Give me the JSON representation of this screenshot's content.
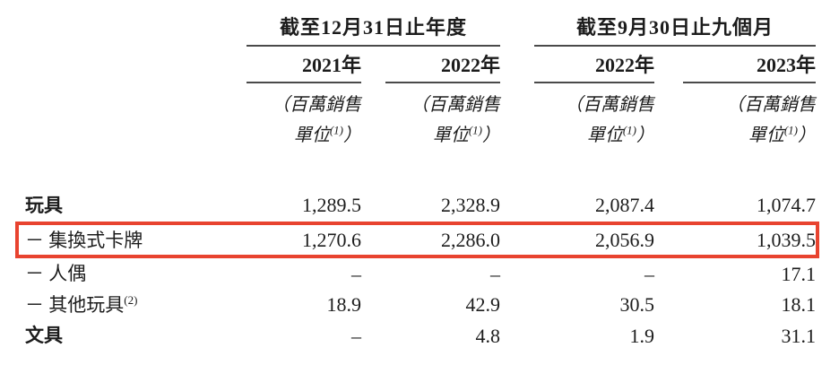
{
  "colors": {
    "highlight_box_red": "#e8432f",
    "rule_gray": "#4a4a4a",
    "text": "#1c1c1c"
  },
  "table": {
    "groups": [
      {
        "title": "截至12月31日止年度",
        "years": [
          "2021年",
          "2022年"
        ]
      },
      {
        "title": "截至9月30日止九個月",
        "years": [
          "2022年",
          "2023年"
        ]
      }
    ],
    "unit_note": {
      "line1": "（百萬銷售",
      "line2_pre": "單位",
      "sup": "(1)",
      "line2_post": "）"
    },
    "rows": [
      {
        "label": "玩具",
        "bold": true,
        "values": [
          "1,289.5",
          "2,328.9",
          "2,087.4",
          "1,074.7"
        ]
      },
      {
        "label": "－ 集換式卡牌",
        "bold": false,
        "highlighted": true,
        "values": [
          "1,270.6",
          "2,286.0",
          "2,056.9",
          "1,039.5"
        ]
      },
      {
        "label": "－ 人偶",
        "bold": false,
        "values": [
          "–",
          "–",
          "–",
          "17.1"
        ]
      },
      {
        "label": "－ 其他玩具",
        "label_sup": "(2)",
        "bold": false,
        "values": [
          "18.9",
          "42.9",
          "30.5",
          "18.1"
        ]
      },
      {
        "label": "文具",
        "bold": true,
        "values": [
          "–",
          "4.8",
          "1.9",
          "31.1"
        ]
      }
    ]
  }
}
